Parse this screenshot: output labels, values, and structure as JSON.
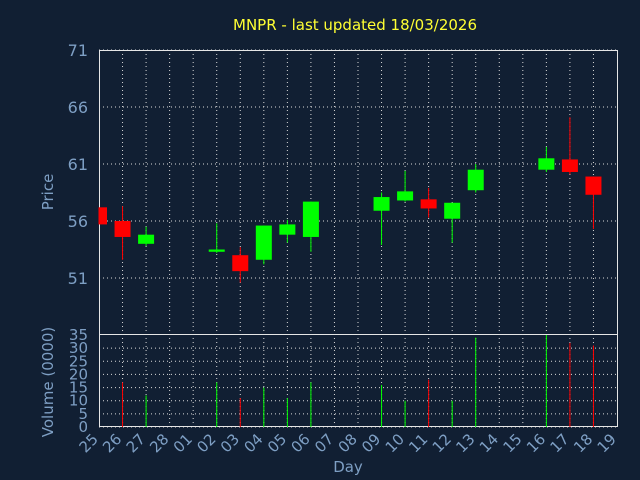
{
  "chart_data": {
    "type": "candlestick",
    "title": "MNPR - last updated 18/03/2026",
    "xlabel": "Day",
    "price_ylabel": "Price",
    "volume_ylabel": "Volume (0000)",
    "price_ylim": [
      46,
      71
    ],
    "price_ticks": [
      51,
      56,
      61,
      66,
      71
    ],
    "volume_ylim": [
      0,
      35
    ],
    "volume_ticks": [
      0,
      5,
      10,
      15,
      20,
      25,
      30,
      35
    ],
    "grid": true,
    "x_tick_labels": [
      "25",
      "26",
      "27",
      "28",
      "01",
      "02",
      "03",
      "04",
      "05",
      "06",
      "07",
      "08",
      "09",
      "10",
      "11",
      "12",
      "13",
      "14",
      "15",
      "16",
      "17",
      "18",
      "19"
    ],
    "colors": {
      "up": "#00ff00",
      "down": "#ff0000",
      "background": "#111f33",
      "title": "#ffff33",
      "axis_text": "#7e9fc4",
      "grid": "#d9d9d9"
    },
    "candles": [
      {
        "day": "25",
        "open": 57.2,
        "close": 55.7,
        "high": 57.2,
        "low": 55.7,
        "volume": 0
      },
      {
        "day": "26",
        "open": 56.0,
        "close": 54.6,
        "high": 57.3,
        "low": 52.6,
        "volume": 17
      },
      {
        "day": "27",
        "open": 54.0,
        "close": 54.8,
        "high": 55.5,
        "low": 53.8,
        "volume": 12
      },
      {
        "day": "02",
        "open": 53.3,
        "close": 53.5,
        "high": 55.8,
        "low": 53.2,
        "volume": 17
      },
      {
        "day": "03",
        "open": 53.0,
        "close": 51.6,
        "high": 53.7,
        "low": 50.6,
        "volume": 11
      },
      {
        "day": "04",
        "open": 52.6,
        "close": 55.6,
        "high": 55.6,
        "low": 52.2,
        "volume": 15
      },
      {
        "day": "05",
        "open": 54.8,
        "close": 55.7,
        "high": 56.1,
        "low": 54.1,
        "volume": 11
      },
      {
        "day": "06",
        "open": 54.6,
        "close": 57.7,
        "high": 57.7,
        "low": 53.3,
        "volume": 17
      },
      {
        "day": "09",
        "open": 56.9,
        "close": 58.1,
        "high": 58.5,
        "low": 53.9,
        "volume": 16
      },
      {
        "day": "10",
        "open": 57.8,
        "close": 58.6,
        "high": 60.4,
        "low": 57.7,
        "volume": 10
      },
      {
        "day": "11",
        "open": 57.9,
        "close": 57.1,
        "high": 58.9,
        "low": 56.3,
        "volume": 18
      },
      {
        "day": "12",
        "open": 56.2,
        "close": 57.6,
        "high": 57.6,
        "low": 54.1,
        "volume": 10
      },
      {
        "day": "13",
        "open": 58.7,
        "close": 60.5,
        "high": 61.0,
        "low": 58.5,
        "volume": 34
      },
      {
        "day": "16",
        "open": 60.5,
        "close": 61.5,
        "high": 62.5,
        "low": 60.3,
        "volume": 35
      },
      {
        "day": "17",
        "open": 61.4,
        "close": 60.3,
        "high": 65.1,
        "low": 60.1,
        "volume": 32
      },
      {
        "day": "18",
        "open": 59.9,
        "close": 58.3,
        "high": 59.9,
        "low": 55.3,
        "volume": 31
      }
    ]
  }
}
